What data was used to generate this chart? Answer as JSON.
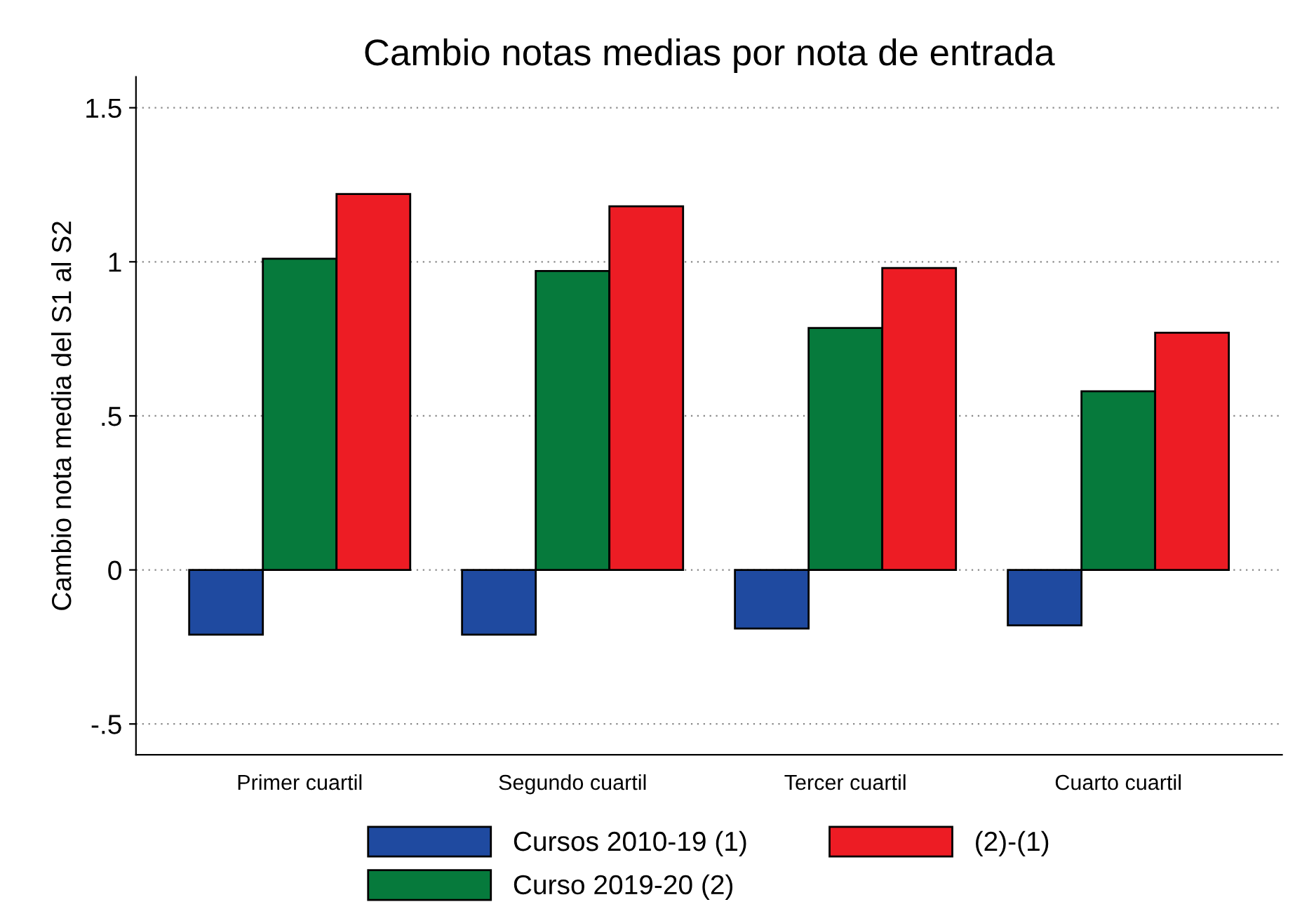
{
  "chart_data": {
    "type": "bar",
    "title": "Cambio notas medias por nota de entrada",
    "ylabel": "Cambio nota media del S1 al S2",
    "categories": [
      "Primer cuartil",
      "Segundo cuartil",
      "Tercer cuartil",
      "Cuarto cuartil"
    ],
    "series": [
      {
        "name": "Cursos 2010-19 (1)",
        "color": "#1f4aa0",
        "values": [
          -0.21,
          -0.21,
          -0.19,
          -0.18
        ]
      },
      {
        "name": "Curso 2019-20 (2)",
        "color": "#067a3c",
        "values": [
          1.01,
          0.97,
          0.785,
          0.58
        ]
      },
      {
        "name": "(2)-(1)",
        "color": "#ed1c24",
        "values": [
          1.22,
          1.18,
          0.98,
          0.77
        ]
      }
    ],
    "ylim": [
      -0.6,
      1.6
    ],
    "yticks": [
      {
        "value": -0.5,
        "label": "-.5"
      },
      0,
      {
        "value": 0.5,
        "label": ".5"
      },
      1,
      1.5
    ],
    "grid": "y",
    "legend": "bottom"
  }
}
